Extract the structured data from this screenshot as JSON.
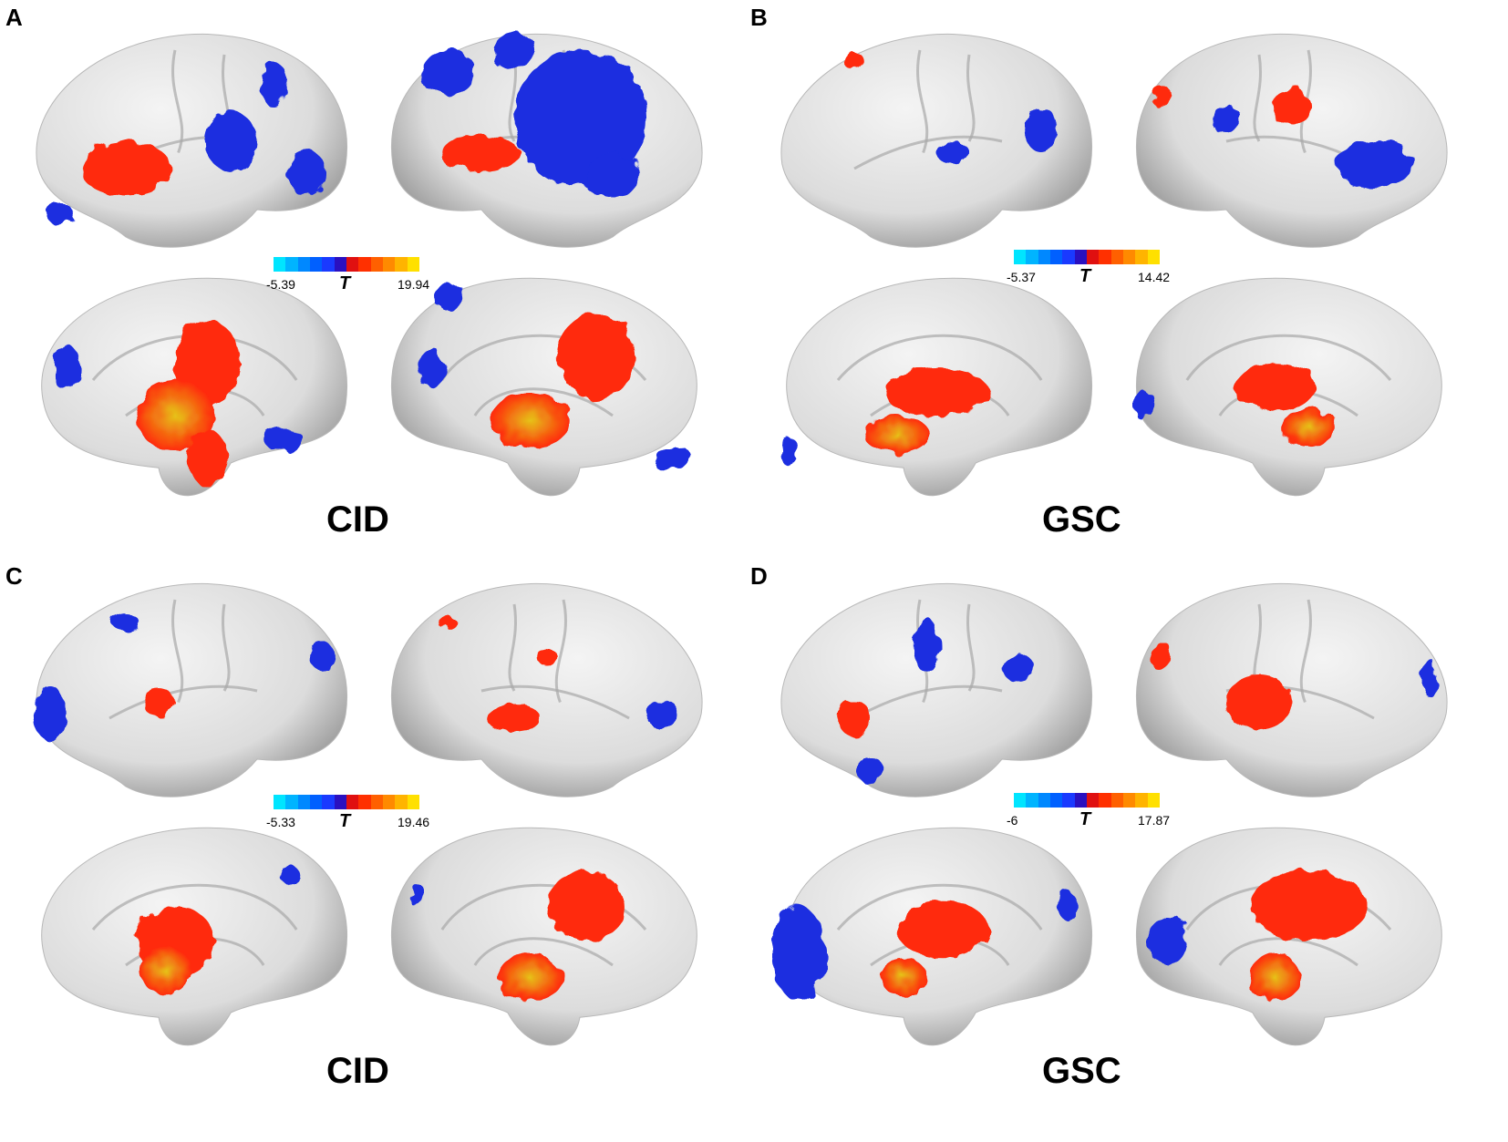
{
  "colors": {
    "cortex": "#dcdcdc",
    "cortex_shadow": "#9a9a9a",
    "positive": "#ff2a0a",
    "positive_peak": "#e6c21a",
    "negative": "#1a2fe0",
    "negative_peak": "#2a7fd0"
  },
  "colorbar_colors": [
    "#00e5ff",
    "#00b4ff",
    "#0088ff",
    "#0060ff",
    "#1a3aff",
    "#2a10c0",
    "#e01010",
    "#ff3000",
    "#ff6000",
    "#ff8a00",
    "#ffb400",
    "#ffe000"
  ],
  "panels": [
    {
      "letter": "A",
      "title": "CID",
      "t_label": "T",
      "t_min": "-5.39",
      "t_max": "19.94"
    },
    {
      "letter": "B",
      "title": "GSC",
      "t_label": "T",
      "t_min": "-5.37",
      "t_max": "14.42"
    },
    {
      "letter": "C",
      "title": "CID",
      "t_label": "T",
      "t_min": "-5.33",
      "t_max": "19.46"
    },
    {
      "letter": "D",
      "title": "GSC",
      "t_label": "T",
      "t_min": "-6",
      "t_max": "17.87"
    }
  ]
}
